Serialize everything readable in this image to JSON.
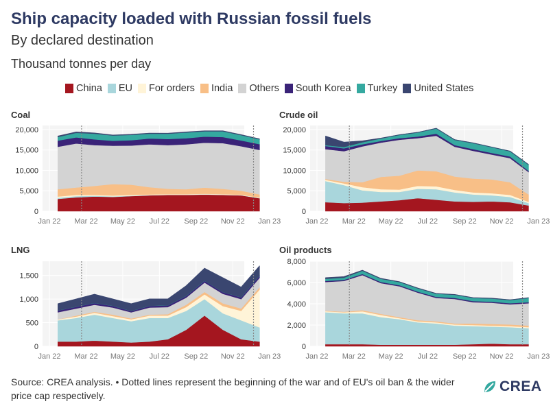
{
  "header": {
    "title": "Ship capacity loaded with Russian fossil fuels",
    "subtitle": "By declared destination",
    "unit": "Thousand tonnes per day"
  },
  "legend": [
    {
      "name": "China",
      "color": "#a4161f"
    },
    {
      "name": "EU",
      "color": "#a9d6dc"
    },
    {
      "name": "For orders",
      "color": "#fff4d8"
    },
    {
      "name": "India",
      "color": "#f8bf87"
    },
    {
      "name": "Others",
      "color": "#d3d3d3"
    },
    {
      "name": "South Korea",
      "color": "#3a2378"
    },
    {
      "name": "Turkey",
      "color": "#35a9a0"
    },
    {
      "name": "United States",
      "color": "#3a4670"
    }
  ],
  "footer": {
    "source": "Source: CREA analysis. • Dotted lines represent the beginning of the war and of EU's oil ban & the wider price cap respectively.",
    "logo": "CREA"
  },
  "chart_data": [
    {
      "type": "area",
      "title": "Coal",
      "x_ticks": [
        "Jan 22",
        "Mar 22",
        "May 22",
        "Jul 22",
        "Sep 22",
        "Nov 22",
        "Jan 23"
      ],
      "y_ticks": [
        "0",
        "5,000",
        "10,000",
        "15,000",
        "20,000"
      ],
      "ylim": [
        0,
        21000
      ],
      "x": [
        "2022-01",
        "2022-02",
        "2022-03",
        "2022-04",
        "2022-05",
        "2022-06",
        "2022-07",
        "2022-08",
        "2022-09",
        "2022-10",
        "2022-11",
        "2022-12"
      ],
      "reference_lines": [
        "2022-02-24",
        "2022-12-05"
      ],
      "series": [
        {
          "name": "China",
          "values": [
            3000,
            3400,
            3600,
            3500,
            3700,
            3900,
            4000,
            4000,
            4100,
            4000,
            3900,
            3200
          ]
        },
        {
          "name": "EU",
          "values": [
            300,
            300,
            200,
            150,
            100,
            50,
            40,
            30,
            30,
            30,
            30,
            20
          ]
        },
        {
          "name": "For orders",
          "values": [
            300,
            300,
            200,
            200,
            200,
            150,
            150,
            150,
            150,
            150,
            100,
            100
          ]
        },
        {
          "name": "India",
          "values": [
            1800,
            1800,
            2200,
            2800,
            2500,
            1800,
            1300,
            1200,
            1500,
            1300,
            1000,
            800
          ]
        },
        {
          "name": "Others",
          "values": [
            10400,
            10800,
            10000,
            9400,
            9600,
            10500,
            10700,
            11000,
            11000,
            11200,
            10900,
            10900
          ]
        },
        {
          "name": "South Korea",
          "values": [
            1500,
            1500,
            1400,
            1200,
            1300,
            1400,
            1500,
            1500,
            1500,
            1500,
            1400,
            1400
          ]
        },
        {
          "name": "Turkey",
          "values": [
            900,
            1100,
            1400,
            1300,
            1300,
            1200,
            1300,
            1400,
            1300,
            1400,
            1300,
            1200
          ]
        },
        {
          "name": "United States",
          "values": [
            200,
            200,
            150,
            100,
            100,
            100,
            100,
            100,
            100,
            100,
            100,
            80
          ]
        }
      ]
    },
    {
      "type": "area",
      "title": "Crude oil",
      "x_ticks": [
        "Jan 22",
        "Mar 22",
        "May 22",
        "Jul 22",
        "Sep 22",
        "Nov 22",
        "Jan 23"
      ],
      "y_ticks": [
        "0",
        "5,000",
        "10,000",
        "15,000",
        "20,000"
      ],
      "ylim": [
        0,
        21000
      ],
      "x": [
        "2022-01",
        "2022-02",
        "2022-03",
        "2022-04",
        "2022-05",
        "2022-06",
        "2022-07",
        "2022-08",
        "2022-09",
        "2022-10",
        "2022-11",
        "2022-12"
      ],
      "reference_lines": [
        "2022-02-24",
        "2022-12-05"
      ],
      "series": [
        {
          "name": "China",
          "values": [
            2200,
            2000,
            2100,
            2400,
            2700,
            3200,
            2800,
            2400,
            2300,
            2400,
            2200,
            1400
          ]
        },
        {
          "name": "EU",
          "values": [
            5200,
            4400,
            3000,
            2300,
            2000,
            2300,
            2600,
            2200,
            1800,
            1500,
            1300,
            600
          ]
        },
        {
          "name": "For orders",
          "values": [
            300,
            400,
            800,
            700,
            600,
            700,
            700,
            600,
            500,
            500,
            500,
            300
          ]
        },
        {
          "name": "India",
          "values": [
            200,
            400,
            1200,
            3000,
            3400,
            3800,
            3700,
            3300,
            3400,
            3400,
            3100,
            1800
          ]
        },
        {
          "name": "Others",
          "values": [
            7300,
            7500,
            8800,
            8400,
            8800,
            7900,
            8700,
            7300,
            6800,
            6100,
            5900,
            5500
          ]
        },
        {
          "name": "South Korea",
          "values": [
            800,
            700,
            500,
            400,
            400,
            400,
            500,
            400,
            400,
            400,
            400,
            300
          ]
        },
        {
          "name": "Turkey",
          "values": [
            200,
            300,
            500,
            600,
            800,
            1000,
            1300,
            1300,
            1500,
            1400,
            1300,
            1500
          ]
        },
        {
          "name": "United States",
          "values": [
            2200,
            1200,
            300,
            100,
            0,
            0,
            0,
            0,
            0,
            0,
            0,
            0
          ]
        }
      ]
    },
    {
      "type": "area",
      "title": "LNG",
      "x_ticks": [
        "Jan 22",
        "Mar 22",
        "May 22",
        "Jul 22",
        "Sep 22",
        "Nov 22",
        "Jan 23"
      ],
      "y_ticks": [
        "0",
        "500",
        "1,000",
        "1,500"
      ],
      "ylim": [
        0,
        1800
      ],
      "x": [
        "2022-01",
        "2022-02",
        "2022-03",
        "2022-04",
        "2022-05",
        "2022-06",
        "2022-07",
        "2022-08",
        "2022-09",
        "2022-10",
        "2022-11",
        "2022-12"
      ],
      "reference_lines": [
        "2022-02-24",
        "2022-12-05"
      ],
      "series": [
        {
          "name": "China",
          "values": [
            100,
            100,
            120,
            100,
            80,
            100,
            150,
            350,
            650,
            350,
            150,
            100
          ]
        },
        {
          "name": "EU",
          "values": [
            450,
            500,
            550,
            500,
            450,
            500,
            450,
            400,
            350,
            350,
            400,
            300
          ]
        },
        {
          "name": "For orders",
          "values": [
            20,
            30,
            40,
            40,
            40,
            50,
            50,
            80,
            100,
            150,
            200,
            800
          ]
        },
        {
          "name": "India",
          "values": [
            0,
            20,
            20,
            30,
            20,
            20,
            30,
            50,
            50,
            60,
            50,
            50
          ]
        },
        {
          "name": "Others",
          "values": [
            150,
            150,
            150,
            150,
            130,
            150,
            150,
            150,
            200,
            200,
            200,
            200
          ]
        },
        {
          "name": "South Korea",
          "values": [
            40,
            40,
            40,
            40,
            30,
            40,
            40,
            40,
            40,
            40,
            40,
            50
          ]
        },
        {
          "name": "Turkey",
          "values": [
            0,
            0,
            0,
            0,
            0,
            0,
            0,
            0,
            0,
            0,
            0,
            0
          ]
        },
        {
          "name": "United States",
          "values": [
            140,
            160,
            180,
            140,
            150,
            140,
            130,
            210,
            260,
            300,
            210,
            200
          ]
        }
      ]
    },
    {
      "type": "area",
      "title": "Oil products",
      "x_ticks": [
        "Jan 22",
        "Mar 22",
        "May 22",
        "Jul 22",
        "Sep 22",
        "Nov 22",
        "Jan 23"
      ],
      "y_ticks": [
        "0",
        "2,000",
        "4,000",
        "6,000",
        "8,000"
      ],
      "ylim": [
        0,
        8000
      ],
      "x": [
        "2022-01",
        "2022-02",
        "2022-03",
        "2022-04",
        "2022-05",
        "2022-06",
        "2022-07",
        "2022-08",
        "2022-09",
        "2022-10",
        "2022-11",
        "2022-12"
      ],
      "reference_lines": [
        "2022-02-24",
        "2022-12-05"
      ],
      "series": [
        {
          "name": "China",
          "values": [
            200,
            200,
            200,
            150,
            150,
            150,
            150,
            150,
            200,
            250,
            200,
            200
          ]
        },
        {
          "name": "EU",
          "values": [
            3000,
            2900,
            2900,
            2600,
            2400,
            2100,
            2000,
            1800,
            1700,
            1600,
            1600,
            1500
          ]
        },
        {
          "name": "For orders",
          "values": [
            100,
            100,
            200,
            200,
            100,
            100,
            100,
            100,
            100,
            100,
            100,
            100
          ]
        },
        {
          "name": "India",
          "values": [
            50,
            50,
            100,
            100,
            100,
            100,
            100,
            100,
            150,
            150,
            150,
            150
          ]
        },
        {
          "name": "Others",
          "values": [
            2700,
            2900,
            3300,
            2900,
            2900,
            2600,
            2200,
            2300,
            2000,
            2000,
            1900,
            2100
          ]
        },
        {
          "name": "South Korea",
          "values": [
            100,
            100,
            100,
            100,
            100,
            100,
            100,
            100,
            100,
            100,
            100,
            100
          ]
        },
        {
          "name": "Turkey",
          "values": [
            200,
            200,
            300,
            300,
            300,
            300,
            300,
            300,
            300,
            300,
            300,
            400
          ]
        },
        {
          "name": "United States",
          "values": [
            100,
            100,
            50,
            30,
            20,
            20,
            20,
            20,
            20,
            20,
            20,
            20
          ]
        }
      ]
    }
  ]
}
